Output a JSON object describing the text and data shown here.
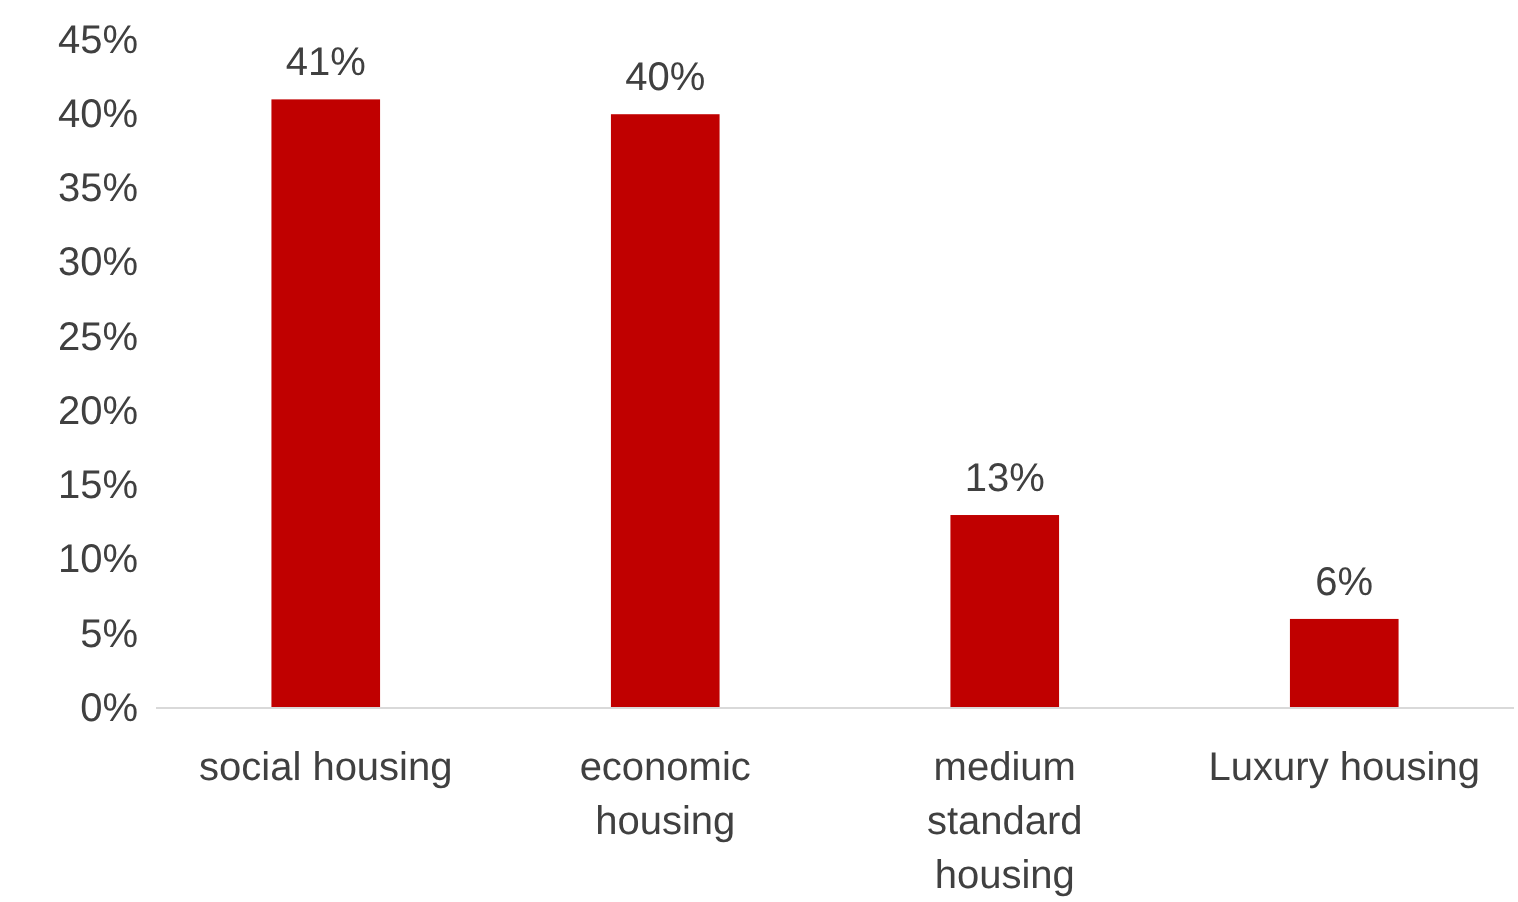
{
  "chart_data": {
    "type": "bar",
    "categories": [
      "social housing",
      "economic housing",
      "medium standard housing",
      "Luxury housing"
    ],
    "values": [
      41,
      40,
      13,
      6
    ],
    "color": "#c00000",
    "value_labels": [
      "41%",
      "40%",
      "13%",
      "6%"
    ],
    "ylim": [
      0,
      45
    ],
    "yticks": [
      {
        "value": 0,
        "label": "0%"
      },
      {
        "value": 5,
        "label": "5%"
      },
      {
        "value": 10,
        "label": "10%"
      },
      {
        "value": 15,
        "label": "15%"
      },
      {
        "value": 20,
        "label": "20%"
      },
      {
        "value": 25,
        "label": "25%"
      },
      {
        "value": 30,
        "label": "30%"
      },
      {
        "value": 35,
        "label": "35%"
      },
      {
        "value": 40,
        "label": "40%"
      },
      {
        "value": 45,
        "label": "45%"
      }
    ],
    "grid": false
  }
}
